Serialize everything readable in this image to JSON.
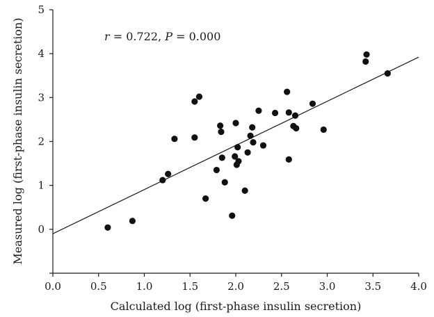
{
  "chart_data": {
    "type": "scatter",
    "title": "",
    "xlabel": "Calculated log (first-phase insulin secretion)",
    "ylabel": "Measured log (first-phase insulin secretion)",
    "xlim": [
      0.0,
      4.0
    ],
    "ylim": [
      -1,
      5
    ],
    "x_ticks": [
      "0.0",
      "0.5",
      "1.0",
      "1.5",
      "2.0",
      "2.5",
      "3.0",
      "3.5",
      "4.0"
    ],
    "y_ticks": [
      "0",
      "1",
      "2",
      "3",
      "4",
      "5"
    ],
    "annotation": {
      "r_symbol": "r",
      "r_value": " = 0.722, ",
      "p_symbol": "P",
      "p_value": " = 0.000"
    },
    "regression_line": {
      "x": [
        0.0,
        4.0
      ],
      "y": [
        -0.1,
        3.92
      ]
    },
    "points": [
      {
        "x": 0.6,
        "y": 0.04
      },
      {
        "x": 0.87,
        "y": 0.19
      },
      {
        "x": 1.2,
        "y": 1.12
      },
      {
        "x": 1.26,
        "y": 1.26
      },
      {
        "x": 1.33,
        "y": 2.06
      },
      {
        "x": 1.55,
        "y": 2.09
      },
      {
        "x": 1.55,
        "y": 2.91
      },
      {
        "x": 1.6,
        "y": 3.02
      },
      {
        "x": 1.67,
        "y": 0.7
      },
      {
        "x": 1.79,
        "y": 1.35
      },
      {
        "x": 1.83,
        "y": 2.36
      },
      {
        "x": 1.84,
        "y": 2.22
      },
      {
        "x": 1.85,
        "y": 1.63
      },
      {
        "x": 1.88,
        "y": 1.07
      },
      {
        "x": 1.96,
        "y": 0.31
      },
      {
        "x": 1.99,
        "y": 1.66
      },
      {
        "x": 2.0,
        "y": 2.42
      },
      {
        "x": 2.01,
        "y": 1.47
      },
      {
        "x": 2.02,
        "y": 1.87
      },
      {
        "x": 2.03,
        "y": 1.55
      },
      {
        "x": 2.1,
        "y": 0.88
      },
      {
        "x": 2.13,
        "y": 1.75
      },
      {
        "x": 2.16,
        "y": 2.13
      },
      {
        "x": 2.18,
        "y": 2.32
      },
      {
        "x": 2.19,
        "y": 1.98
      },
      {
        "x": 2.25,
        "y": 2.7
      },
      {
        "x": 2.3,
        "y": 1.91
      },
      {
        "x": 2.43,
        "y": 2.65
      },
      {
        "x": 2.56,
        "y": 3.13
      },
      {
        "x": 2.58,
        "y": 2.66
      },
      {
        "x": 2.58,
        "y": 1.59
      },
      {
        "x": 2.63,
        "y": 2.35
      },
      {
        "x": 2.65,
        "y": 2.59
      },
      {
        "x": 2.66,
        "y": 2.3
      },
      {
        "x": 2.84,
        "y": 2.86
      },
      {
        "x": 2.96,
        "y": 2.27
      },
      {
        "x": 3.42,
        "y": 3.82
      },
      {
        "x": 3.43,
        "y": 3.98
      },
      {
        "x": 3.66,
        "y": 3.55
      }
    ]
  }
}
